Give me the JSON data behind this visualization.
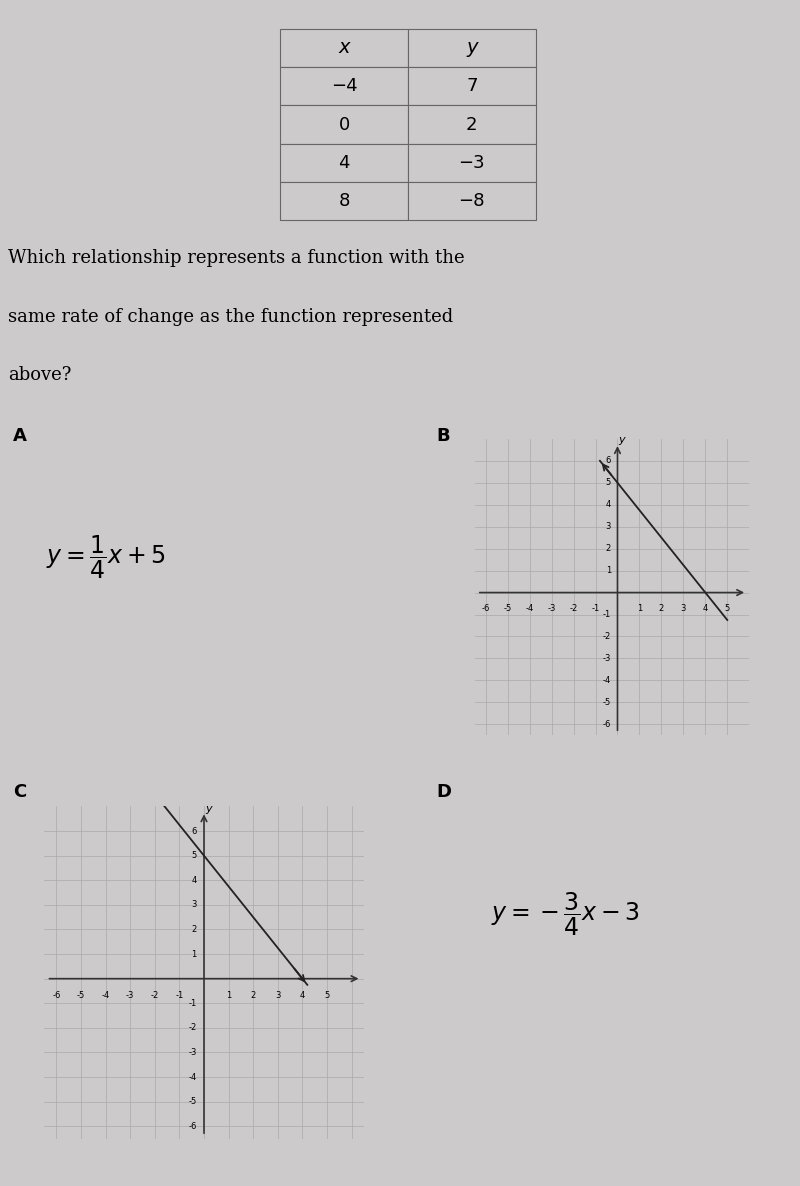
{
  "background_color": "#cccaca",
  "table_x_labels": [
    "−4",
    "0",
    "4",
    "8"
  ],
  "table_y_labels": [
    "7",
    "2",
    "−3",
    "−8"
  ],
  "question_text_line1": "Which relationship represents a function with the",
  "question_text_line2": "same rate of change as the function represented",
  "question_text_line3": "above?",
  "label_A": "A",
  "label_B": "B",
  "label_C": "C",
  "label_D": "D",
  "slope_B": -1.25,
  "yint_B": 5,
  "slope_C": -1.25,
  "yint_C": 5,
  "grid_color": "#aaaaaa",
  "axis_color": "#333333",
  "line_color": "#222222"
}
